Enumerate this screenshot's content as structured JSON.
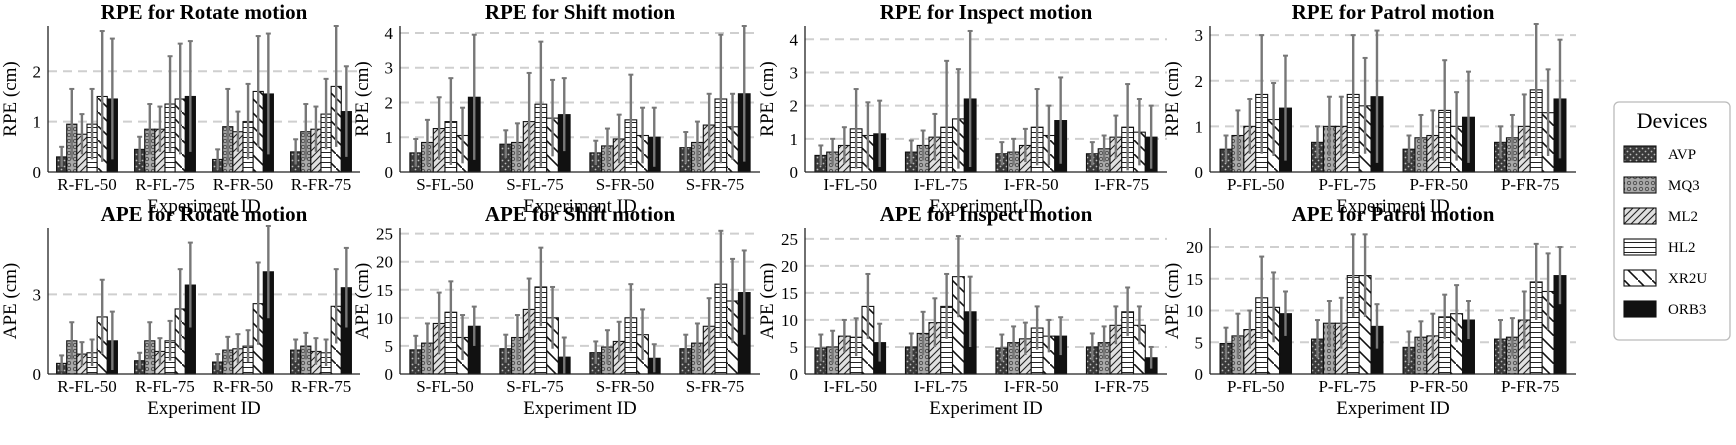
{
  "chart_data": {
    "type": "bar",
    "categories_note": "grouped bars with error bars; 8 subplots",
    "legend": {
      "title": "Devices",
      "placement": "right",
      "entries": [
        {
          "name": "AVP",
          "pattern": "dots"
        },
        {
          "name": "MQ3",
          "pattern": "circles"
        },
        {
          "name": "ML2",
          "pattern": "diag"
        },
        {
          "name": "HL2",
          "pattern": "hlines"
        },
        {
          "name": "XR2U",
          "pattern": "backdiag"
        },
        {
          "name": "ORB3",
          "pattern": "solid"
        }
      ]
    },
    "subplots": [
      {
        "title": "RPE for Rotate motion",
        "ylabel": "RPE (cm)",
        "xlabel": "Experiment ID",
        "ylim": [
          0,
          2.9
        ],
        "yticks": [
          0,
          1,
          2
        ],
        "categories": [
          "R-FL-50",
          "R-FL-75",
          "R-FR-50",
          "R-FR-75"
        ],
        "series": [
          {
            "name": "AVP",
            "values": [
              0.3,
              0.45,
              0.25,
              0.4
            ],
            "errors": [
              0.2,
              0.25,
              0.2,
              0.25
            ]
          },
          {
            "name": "MQ3",
            "values": [
              0.95,
              0.85,
              0.9,
              0.8
            ],
            "errors": [
              0.7,
              0.5,
              0.75,
              0.55
            ]
          },
          {
            "name": "ML2",
            "values": [
              0.75,
              0.85,
              0.8,
              0.85
            ],
            "errors": [
              0.4,
              0.45,
              0.4,
              0.45
            ]
          },
          {
            "name": "HL2",
            "values": [
              0.95,
              1.35,
              1.0,
              1.15
            ],
            "errors": [
              0.7,
              0.95,
              0.75,
              0.7
            ]
          },
          {
            "name": "XR2U",
            "values": [
              1.5,
              1.45,
              1.6,
              1.7
            ],
            "errors": [
              1.3,
              1.1,
              1.1,
              1.2
            ]
          },
          {
            "name": "ORB3",
            "values": [
              1.45,
              1.5,
              1.55,
              1.2
            ],
            "errors": [
              1.2,
              1.1,
              1.2,
              0.9
            ]
          }
        ]
      },
      {
        "title": "RPE for Shift motion",
        "ylabel": "RPE (cm)",
        "xlabel": "Experiment ID",
        "ylim": [
          0,
          4.2
        ],
        "yticks": [
          0,
          1,
          2,
          3,
          4
        ],
        "categories": [
          "S-FL-50",
          "S-FL-75",
          "S-FR-50",
          "S-FR-75"
        ],
        "series": [
          {
            "name": "AVP",
            "values": [
              0.55,
              0.8,
              0.55,
              0.7
            ],
            "errors": [
              0.4,
              0.4,
              0.35,
              0.45
            ]
          },
          {
            "name": "MQ3",
            "values": [
              0.85,
              0.85,
              0.75,
              0.85
            ],
            "errors": [
              0.65,
              0.55,
              0.5,
              0.6
            ]
          },
          {
            "name": "ML2",
            "values": [
              1.25,
              1.45,
              0.95,
              1.35
            ],
            "errors": [
              0.9,
              1.4,
              0.7,
              0.9
            ]
          },
          {
            "name": "HL2",
            "values": [
              1.45,
              1.95,
              1.5,
              2.1
            ],
            "errors": [
              1.25,
              1.8,
              1.3,
              1.85
            ]
          },
          {
            "name": "XR2U",
            "values": [
              1.05,
              1.55,
              1.05,
              1.3
            ],
            "errors": [
              0.8,
              1.1,
              0.8,
              0.95
            ]
          },
          {
            "name": "ORB3",
            "values": [
              2.15,
              1.65,
              1.0,
              2.25
            ],
            "errors": [
              1.8,
              1.05,
              0.85,
              1.95
            ]
          }
        ]
      },
      {
        "title": "RPE for Inspect motion",
        "ylabel": "RPE (cm)",
        "xlabel": "Experiment ID",
        "ylim": [
          0,
          4.4
        ],
        "yticks": [
          0,
          1,
          2,
          3,
          4
        ],
        "categories": [
          "I-FL-50",
          "I-FL-75",
          "I-FR-50",
          "I-FR-75"
        ],
        "series": [
          {
            "name": "AVP",
            "values": [
              0.5,
              0.6,
              0.55,
              0.55
            ],
            "errors": [
              0.3,
              0.35,
              0.35,
              0.35
            ]
          },
          {
            "name": "MQ3",
            "values": [
              0.6,
              0.8,
              0.6,
              0.7
            ],
            "errors": [
              0.4,
              0.45,
              0.4,
              0.4
            ]
          },
          {
            "name": "ML2",
            "values": [
              0.8,
              1.05,
              0.8,
              1.05
            ],
            "errors": [
              0.55,
              0.7,
              0.5,
              0.65
            ]
          },
          {
            "name": "HL2",
            "values": [
              1.3,
              1.35,
              1.35,
              1.35
            ],
            "errors": [
              1.2,
              2.0,
              1.15,
              1.3
            ]
          },
          {
            "name": "XR2U",
            "values": [
              1.1,
              1.6,
              1.1,
              1.2
            ],
            "errors": [
              1.0,
              1.5,
              0.9,
              1.0
            ]
          },
          {
            "name": "ORB3",
            "values": [
              1.15,
              2.2,
              1.55,
              1.05
            ],
            "errors": [
              1.0,
              2.05,
              1.3,
              0.95
            ]
          }
        ]
      },
      {
        "title": "RPE for Patrol motion",
        "ylabel": "RPE (cm)",
        "xlabel": "Experiment ID",
        "ylim": [
          0,
          3.2
        ],
        "yticks": [
          0,
          1,
          2,
          3
        ],
        "categories": [
          "P-FL-50",
          "P-FL-75",
          "P-FR-50",
          "P-FR-75"
        ],
        "series": [
          {
            "name": "AVP",
            "values": [
              0.5,
              0.65,
              0.5,
              0.65
            ],
            "errors": [
              0.3,
              0.35,
              0.3,
              0.35
            ]
          },
          {
            "name": "MQ3",
            "values": [
              0.8,
              1.0,
              0.75,
              0.75
            ],
            "errors": [
              0.55,
              0.65,
              0.5,
              0.5
            ]
          },
          {
            "name": "ML2",
            "values": [
              1.0,
              1.0,
              0.8,
              1.0
            ],
            "errors": [
              0.6,
              0.65,
              0.55,
              0.7
            ]
          },
          {
            "name": "HL2",
            "values": [
              1.7,
              1.7,
              1.35,
              1.8
            ],
            "errors": [
              1.3,
              1.3,
              1.1,
              1.45
            ]
          },
          {
            "name": "XR2U",
            "values": [
              1.15,
              1.45,
              1.0,
              1.3
            ],
            "errors": [
              0.8,
              1.05,
              0.75,
              0.95
            ]
          },
          {
            "name": "ORB3",
            "values": [
              1.4,
              1.65,
              1.2,
              1.6
            ],
            "errors": [
              1.15,
              1.45,
              1.0,
              1.3
            ]
          }
        ]
      },
      {
        "title": "APE for Rotate motion",
        "ylabel": "APE (cm)",
        "xlabel": "Experiment ID",
        "ylim": [
          0,
          5.5
        ],
        "yticks": [
          0,
          3
        ],
        "categories": [
          "R-FL-50",
          "R-FL-75",
          "R-FR-50",
          "R-FR-75"
        ],
        "series": [
          {
            "name": "AVP",
            "values": [
              0.4,
              0.5,
              0.45,
              0.9
            ],
            "errors": [
              0.3,
              0.3,
              0.3,
              0.4
            ]
          },
          {
            "name": "MQ3",
            "values": [
              1.25,
              1.25,
              0.9,
              1.05
            ],
            "errors": [
              0.7,
              0.7,
              0.5,
              0.5
            ]
          },
          {
            "name": "ML2",
            "values": [
              0.75,
              0.85,
              0.95,
              0.85
            ],
            "errors": [
              0.45,
              0.5,
              0.55,
              0.5
            ]
          },
          {
            "name": "HL2",
            "values": [
              0.8,
              1.25,
              1.05,
              0.8
            ],
            "errors": [
              0.5,
              0.75,
              0.6,
              0.5
            ]
          },
          {
            "name": "XR2U",
            "values": [
              2.15,
              2.45,
              2.65,
              2.55
            ],
            "errors": [
              1.4,
              1.5,
              1.55,
              1.4
            ]
          },
          {
            "name": "ORB3",
            "values": [
              1.25,
              3.35,
              3.85,
              3.25
            ],
            "errors": [
              1.1,
              1.6,
              1.75,
              1.5
            ]
          }
        ]
      },
      {
        "title": "APE for Shift motion",
        "ylabel": "APE (cm)",
        "xlabel": "Experiment ID",
        "ylim": [
          0,
          26
        ],
        "yticks": [
          0,
          5,
          10,
          15,
          20,
          25
        ],
        "categories": [
          "S-FL-50",
          "S-FL-75",
          "S-FR-50",
          "S-FR-75"
        ],
        "series": [
          {
            "name": "AVP",
            "values": [
              4.3,
              4.5,
              3.8,
              4.5
            ],
            "errors": [
              2.5,
              2.5,
              2.0,
              2.5
            ]
          },
          {
            "name": "MQ3",
            "values": [
              5.5,
              6.5,
              4.8,
              5.5
            ],
            "errors": [
              3.5,
              4.0,
              3.0,
              3.5
            ]
          },
          {
            "name": "ML2",
            "values": [
              9.0,
              11.5,
              5.8,
              8.5
            ],
            "errors": [
              5.5,
              5.5,
              3.5,
              5.0
            ]
          },
          {
            "name": "HL2",
            "values": [
              11.0,
              15.5,
              10.0,
              16.0
            ],
            "errors": [
              5.5,
              7.0,
              6.0,
              9.5
            ]
          },
          {
            "name": "XR2U",
            "values": [
              6.5,
              10.0,
              7.0,
              13.0
            ],
            "errors": [
              4.0,
              5.5,
              4.5,
              7.5
            ]
          },
          {
            "name": "ORB3",
            "values": [
              8.5,
              3.0,
              2.8,
              14.5
            ],
            "errors": [
              3.5,
              3.5,
              2.5,
              7.5
            ]
          }
        ]
      },
      {
        "title": "APE for Inspect motion",
        "ylabel": "APE (cm)",
        "xlabel": "Experiment ID",
        "ylim": [
          0,
          27
        ],
        "yticks": [
          0,
          5,
          10,
          15,
          20,
          25
        ],
        "categories": [
          "I-FL-50",
          "I-FL-75",
          "I-FR-50",
          "I-FR-75"
        ],
        "series": [
          {
            "name": "AVP",
            "values": [
              4.8,
              5.0,
              4.8,
              5.0
            ],
            "errors": [
              2.5,
              2.5,
              2.5,
              2.5
            ]
          },
          {
            "name": "MQ3",
            "values": [
              5.0,
              7.5,
              5.8,
              5.8
            ],
            "errors": [
              3.0,
              4.0,
              3.0,
              3.0
            ]
          },
          {
            "name": "ML2",
            "values": [
              7.0,
              9.5,
              6.5,
              9.0
            ],
            "errors": [
              3.0,
              4.5,
              3.0,
              3.5
            ]
          },
          {
            "name": "HL2",
            "values": [
              6.8,
              12.5,
              8.5,
              11.5
            ],
            "errors": [
              3.5,
              6.0,
              4.0,
              4.5
            ]
          },
          {
            "name": "XR2U",
            "values": [
              12.5,
              18.0,
              7.0,
              9.0
            ],
            "errors": [
              6.0,
              7.5,
              3.0,
              3.5
            ]
          },
          {
            "name": "ORB3",
            "values": [
              5.8,
              11.5,
              7.0,
              3.0
            ],
            "errors": [
              3.5,
              6.5,
              3.5,
              2.0
            ]
          }
        ]
      },
      {
        "title": "APE for Patrol motion",
        "ylabel": "APE (cm)",
        "xlabel": "Experiment ID",
        "ylim": [
          0,
          23
        ],
        "yticks": [
          0,
          5,
          10,
          15,
          20
        ],
        "categories": [
          "P-FL-50",
          "P-FL-75",
          "P-FR-50",
          "P-FR-75"
        ],
        "series": [
          {
            "name": "AVP",
            "values": [
              4.8,
              5.5,
              4.2,
              5.5
            ],
            "errors": [
              2.5,
              3.0,
              2.5,
              3.0
            ]
          },
          {
            "name": "MQ3",
            "values": [
              6.0,
              8.0,
              5.8,
              5.8
            ],
            "errors": [
              3.5,
              3.5,
              2.5,
              3.0
            ]
          },
          {
            "name": "ML2",
            "values": [
              7.0,
              8.0,
              6.0,
              8.5
            ],
            "errors": [
              3.0,
              4.0,
              3.5,
              4.5
            ]
          },
          {
            "name": "HL2",
            "values": [
              12.0,
              15.5,
              9.0,
              14.5
            ],
            "errors": [
              6.5,
              6.5,
              3.5,
              6.0
            ]
          },
          {
            "name": "XR2U",
            "values": [
              10.5,
              15.5,
              9.5,
              13.0
            ],
            "errors": [
              5.5,
              6.5,
              4.5,
              6.0
            ]
          },
          {
            "name": "ORB3",
            "values": [
              9.5,
              7.5,
              8.5,
              15.5
            ],
            "errors": [
              3.5,
              3.5,
              3.0,
              4.5
            ]
          }
        ]
      }
    ]
  }
}
